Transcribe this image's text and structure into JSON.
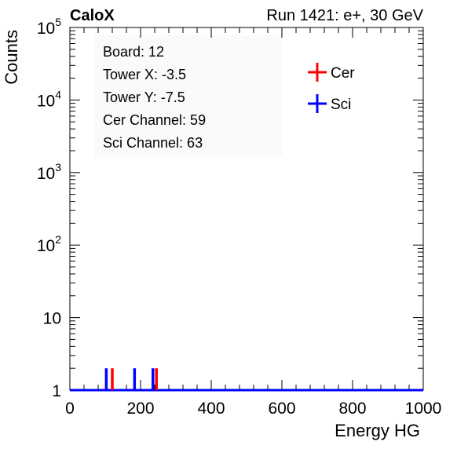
{
  "chart_data": {
    "type": "histogram",
    "title_left": "CaloX",
    "title_right": "Run 1421: e+, 30 GeV",
    "xlabel": "Energy HG",
    "ylabel": "Counts",
    "xlim": [
      0,
      1000
    ],
    "ylim": [
      1,
      100000
    ],
    "yscale": "log",
    "grid": false,
    "x_ticks": [
      "0",
      "200",
      "400",
      "600",
      "800",
      "1000"
    ],
    "y_ticks": [
      "1",
      "10",
      "10^2",
      "10^3",
      "10^4",
      "10^5"
    ],
    "info_box": {
      "lines": [
        "Board: 12",
        "Tower X: -3.5",
        "Tower Y: -7.5",
        "Cer Channel: 59",
        "Sci Channel: 63"
      ]
    },
    "legend": {
      "placement": "top-right",
      "entries": [
        "Cer",
        "Sci"
      ]
    },
    "series": [
      {
        "name": "Cer",
        "color": "#ff0000",
        "points": [
          {
            "x": 120,
            "y": 2
          },
          {
            "x": 245,
            "y": 2
          }
        ]
      },
      {
        "name": "Sci",
        "color": "#0000ff",
        "points": [
          {
            "x": 103,
            "y": 2
          },
          {
            "x": 183,
            "y": 2
          },
          {
            "x": 235,
            "y": 2
          }
        ]
      }
    ]
  }
}
